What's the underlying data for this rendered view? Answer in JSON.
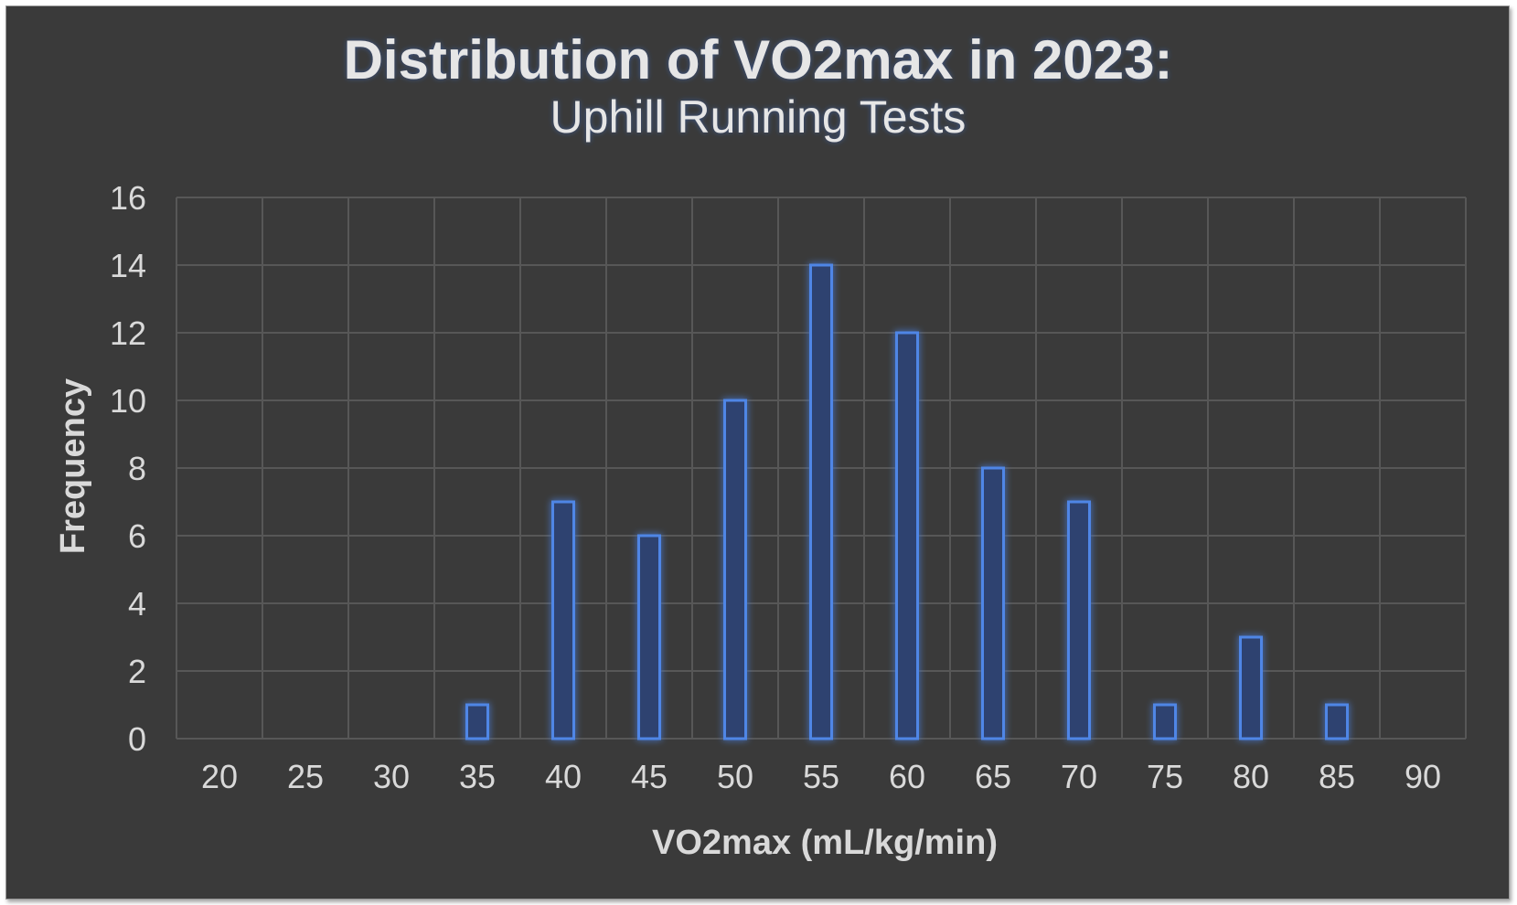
{
  "chart_data": {
    "type": "bar",
    "title": "Distribution of VO2max in 2023:",
    "subtitle": "Uphill Running Tests",
    "xlabel": "VO2max (mL/kg/min)",
    "ylabel": "Frequency",
    "categories": [
      "20",
      "25",
      "30",
      "35",
      "40",
      "45",
      "50",
      "55",
      "60",
      "65",
      "70",
      "75",
      "80",
      "85",
      "90"
    ],
    "values": [
      0,
      0,
      0,
      1,
      7,
      6,
      10,
      14,
      12,
      8,
      7,
      1,
      3,
      1,
      0
    ],
    "ylim": [
      0,
      16
    ],
    "yticks": [
      "0",
      "2",
      "4",
      "6",
      "8",
      "10",
      "12",
      "14",
      "16"
    ],
    "grid": true,
    "legend": "none",
    "colors": {
      "background": "#3a3a3a",
      "bar_fill": "#2f4270",
      "bar_stroke": "#4f86e6",
      "grid": "#575757",
      "text": "#d9d9d9"
    }
  }
}
